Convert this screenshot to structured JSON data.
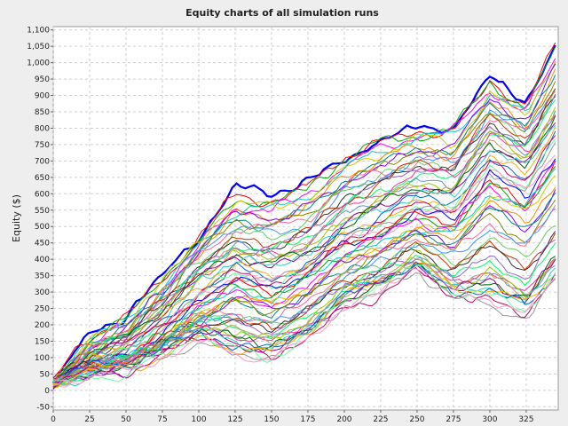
{
  "chart_data": {
    "type": "line",
    "title": "Equity charts of all simulation runs",
    "xlabel": "",
    "ylabel": "Equity ($)",
    "xlim": [
      0,
      347
    ],
    "ylim": [
      -60,
      1110
    ],
    "x_ticks": [
      0,
      25,
      50,
      75,
      100,
      125,
      150,
      175,
      200,
      225,
      250,
      275,
      300,
      325
    ],
    "x_tick_labels": [
      "0",
      "25",
      "50",
      "75",
      "100",
      "125",
      "150",
      "175",
      "200",
      "225",
      "250",
      "275",
      "300",
      "325"
    ],
    "y_ticks": [
      -50,
      0,
      50,
      100,
      150,
      200,
      250,
      300,
      350,
      400,
      450,
      500,
      550,
      600,
      650,
      700,
      750,
      800,
      850,
      900,
      950,
      1000,
      1050,
      1100
    ],
    "y_tick_labels": [
      "-50",
      "0",
      "50",
      "100",
      "150",
      "200",
      "250",
      "300",
      "350",
      "400",
      "450",
      "500",
      "550",
      "600",
      "650",
      "700",
      "750",
      "800",
      "850",
      "900",
      "950",
      "1,000",
      "1,050",
      "1,100"
    ],
    "grid": true,
    "legend": "none",
    "series_count": 60,
    "series_colors": [
      "#0000ff",
      "#ff0000",
      "#00aa00",
      "#ff00ff",
      "#00cccc",
      "#cccc00",
      "#ff8800",
      "#8800ff",
      "#008888",
      "#888800",
      "#ff6699",
      "#3399ff",
      "#66cc66",
      "#cc3300",
      "#333333",
      "#9966cc",
      "#00ff66",
      "#ff3399",
      "#6699cc",
      "#99cc00",
      "#cc9966",
      "#006600",
      "#990099",
      "#33cccc",
      "#ffaa00",
      "#0066cc",
      "#cc0066",
      "#66ff99",
      "#999999",
      "#ff99cc"
    ],
    "representative_series": [
      {
        "x": [
          0,
          25,
          50,
          75,
          100,
          125,
          150,
          175,
          200,
          225,
          250,
          275,
          300,
          325,
          345
        ],
        "y": [
          20,
          160,
          220,
          340,
          470,
          610,
          600,
          640,
          720,
          770,
          800,
          800,
          940,
          880,
          1050
        ]
      },
      {
        "x": [
          0,
          25,
          50,
          75,
          100,
          125,
          150,
          175,
          200,
          225,
          250,
          275,
          300,
          325,
          345
        ],
        "y": [
          20,
          120,
          170,
          280,
          400,
          480,
          470,
          500,
          600,
          650,
          700,
          690,
          840,
          770,
          920
        ]
      },
      {
        "x": [
          0,
          25,
          50,
          75,
          100,
          125,
          150,
          175,
          200,
          225,
          250,
          275,
          300,
          325,
          345
        ],
        "y": [
          20,
          90,
          130,
          210,
          320,
          390,
          360,
          400,
          490,
          540,
          590,
          570,
          720,
          660,
          800
        ]
      },
      {
        "x": [
          0,
          25,
          50,
          75,
          100,
          125,
          150,
          175,
          200,
          225,
          250,
          275,
          300,
          325,
          345
        ],
        "y": [
          20,
          60,
          80,
          150,
          230,
          300,
          260,
          320,
          400,
          440,
          500,
          470,
          600,
          530,
          650
        ]
      },
      {
        "x": [
          0,
          25,
          50,
          75,
          100,
          125,
          150,
          175,
          200,
          225,
          250,
          275,
          300,
          325,
          345
        ],
        "y": [
          20,
          70,
          90,
          140,
          200,
          170,
          150,
          200,
          300,
          350,
          410,
          330,
          370,
          300,
          420
        ]
      },
      {
        "x": [
          0,
          25,
          50,
          75,
          100,
          125,
          150,
          175,
          200,
          225,
          250,
          275,
          300,
          325,
          345
        ],
        "y": [
          20,
          50,
          60,
          110,
          160,
          120,
          100,
          170,
          270,
          310,
          380,
          290,
          260,
          230,
          330
        ]
      }
    ]
  }
}
